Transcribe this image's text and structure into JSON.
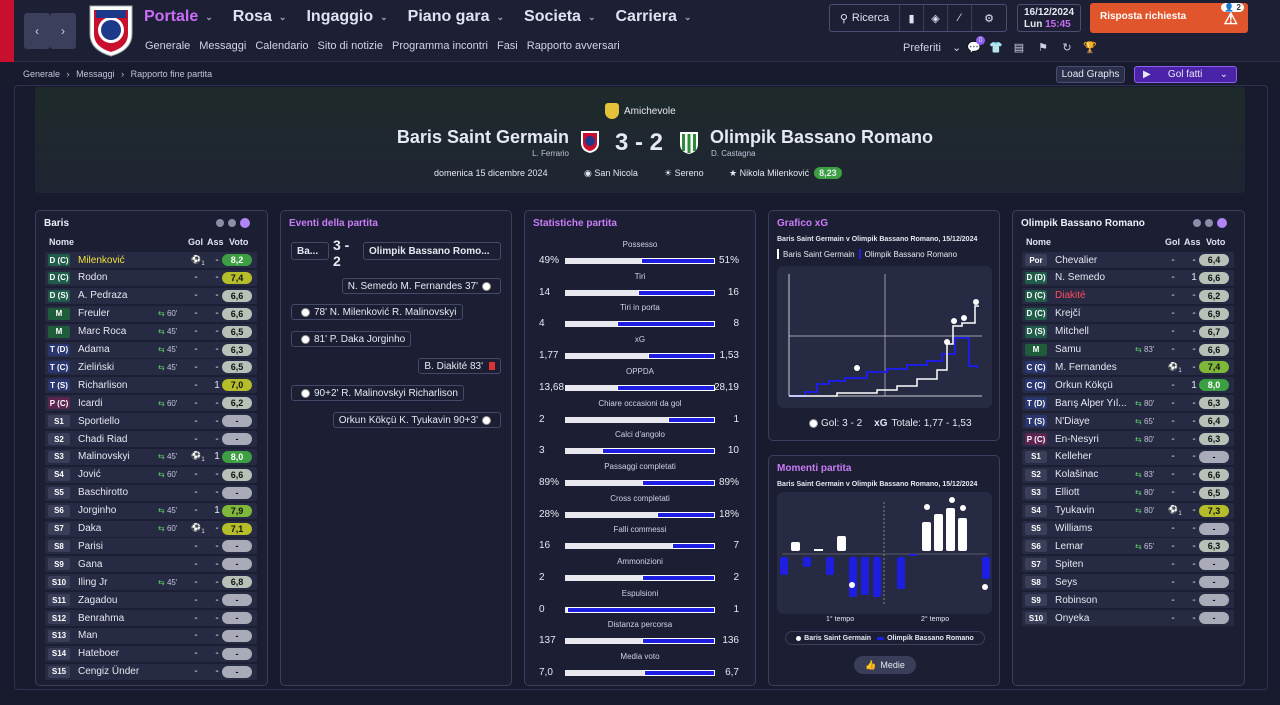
{
  "topbar": {
    "menu": [
      {
        "label": "Portale",
        "active": true
      },
      {
        "label": "Rosa"
      },
      {
        "label": "Ingaggio"
      },
      {
        "label": "Piano gara"
      },
      {
        "label": "Societa"
      },
      {
        "label": "Carriera"
      }
    ],
    "submenu": [
      "Generale",
      "Messaggi",
      "Calendario",
      "Sito di notizie",
      "Programma incontri",
      "Fasi",
      "Rapporto avversari"
    ],
    "search_label": "Ricerca",
    "date": "16/12/2024",
    "day": "Lun",
    "time": "15:45",
    "alert_label": "Risposta richiesta",
    "alert_count": "2",
    "prefs_label": "Preferiti",
    "notif_count": "0"
  },
  "breadcrumb": [
    "Generale",
    "Messaggi",
    "Rapporto fine partita"
  ],
  "buttons": {
    "load_graphs": "Load Graphs",
    "gol_fatti": "Gol fatti"
  },
  "match": {
    "competition": "Amichevole",
    "home": "Baris Saint Germain",
    "home_coach": "L. Ferrario",
    "away": "Olimpik Bassano Romano",
    "away_coach": "D. Castagna",
    "score": "3 - 2",
    "date": "domenica 15 dicembre 2024",
    "stadium": "San Nicola",
    "weather": "Sereno",
    "mvp": "Nikola Milenković",
    "mvp_rating": "8,23"
  },
  "home_panel": {
    "title": "Baris",
    "cols": {
      "name": "Nome",
      "gol": "Gol",
      "ass": "Ass",
      "voto": "Voto"
    },
    "players": [
      {
        "pos": "D (C)",
        "name": "Milenković",
        "gol": "1",
        "ass": "-",
        "voto": "8,2",
        "r": "gr",
        "hl": true
      },
      {
        "pos": "D (C)",
        "name": "Rodon",
        "gol": "-",
        "ass": "-",
        "voto": "7,4",
        "r": "y"
      },
      {
        "pos": "D (S)",
        "name": "A. Pedraza",
        "gol": "-",
        "ass": "-",
        "voto": "6,6",
        "r": "g"
      },
      {
        "pos": "M",
        "name": "Freuler",
        "sub": "60'",
        "gol": "-",
        "ass": "-",
        "voto": "6,6",
        "r": "g"
      },
      {
        "pos": "M",
        "name": "Marc Roca",
        "sub": "45'",
        "gol": "-",
        "ass": "-",
        "voto": "6,5",
        "r": "g"
      },
      {
        "pos": "T (D)",
        "name": "Adama",
        "sub": "45'",
        "gol": "-",
        "ass": "-",
        "voto": "6,3",
        "r": "g"
      },
      {
        "pos": "T (C)",
        "name": "Zieliński",
        "sub": "45'",
        "gol": "-",
        "ass": "-",
        "voto": "6,5",
        "r": "g"
      },
      {
        "pos": "T (S)",
        "name": "Richarlison",
        "gol": "-",
        "ass": "1",
        "voto": "7,0",
        "r": "y"
      },
      {
        "pos": "P (C)",
        "name": "Icardi",
        "sub": "60'",
        "gol": "-",
        "ass": "-",
        "voto": "6,2",
        "r": "g"
      },
      {
        "pos": "S1",
        "name": "Sportiello",
        "gol": "-",
        "ass": "-",
        "voto": "-",
        "r": "n"
      },
      {
        "pos": "S2",
        "name": "Chadi Riad",
        "gol": "-",
        "ass": "-",
        "voto": "-",
        "r": "n"
      },
      {
        "pos": "S3",
        "name": "Malinovskyi",
        "sub": "45'",
        "gol": "1",
        "ass": "1",
        "voto": "8,0",
        "r": "gr"
      },
      {
        "pos": "S4",
        "name": "Jović",
        "sub": "60'",
        "gol": "-",
        "ass": "-",
        "voto": "6,6",
        "r": "g"
      },
      {
        "pos": "S5",
        "name": "Baschirotto",
        "gol": "-",
        "ass": "-",
        "voto": "-",
        "r": "n"
      },
      {
        "pos": "S6",
        "name": "Jorginho",
        "sub": "45'",
        "gol": "-",
        "ass": "1",
        "voto": "7,9",
        "r": "gg"
      },
      {
        "pos": "S7",
        "name": "Daka",
        "sub": "60'",
        "gol": "1",
        "ass": "-",
        "voto": "7,1",
        "r": "y"
      },
      {
        "pos": "S8",
        "name": "Parisi",
        "gol": "-",
        "ass": "-",
        "voto": "-",
        "r": "n"
      },
      {
        "pos": "S9",
        "name": "Gana",
        "gol": "-",
        "ass": "-",
        "voto": "-",
        "r": "n"
      },
      {
        "pos": "S10",
        "name": "Iling Jr",
        "sub": "45'",
        "gol": "-",
        "ass": "-",
        "voto": "6,8",
        "r": "g"
      },
      {
        "pos": "S11",
        "name": "Zagadou",
        "gol": "-",
        "ass": "-",
        "voto": "-",
        "r": "n"
      },
      {
        "pos": "S12",
        "name": "Benrahma",
        "gol": "-",
        "ass": "-",
        "voto": "-",
        "r": "n"
      },
      {
        "pos": "S13",
        "name": "Man",
        "gol": "-",
        "ass": "-",
        "voto": "-",
        "r": "n"
      },
      {
        "pos": "S14",
        "name": "Hateboer",
        "gol": "-",
        "ass": "-",
        "voto": "-",
        "r": "n"
      },
      {
        "pos": "S15",
        "name": "Cengiz Ünder",
        "gol": "-",
        "ass": "-",
        "voto": "-",
        "r": "n"
      }
    ]
  },
  "events_panel": {
    "title": "Eventi della partita",
    "home_short": "Ba...",
    "score_a": "3 -",
    "score_b": "2",
    "away_short": "Olimpik Bassano Romo...",
    "events": [
      {
        "side": "away",
        "text": "N. Semedo  M. Fernandes 37'"
      },
      {
        "side": "home",
        "text": "78'  N. Milenković  R. Malinovskyi"
      },
      {
        "side": "home",
        "text": "81'  P. Daka  Jorginho"
      },
      {
        "side": "away",
        "text": "B. Diakité 83'",
        "card": true
      },
      {
        "side": "home",
        "text": "90+2'  R. Malinovskyi  Richarlison"
      },
      {
        "side": "away",
        "text": "Orkun Kökçü  K. Tyukavin 90+3'"
      }
    ]
  },
  "stats_panel": {
    "title": "Statistiche partita",
    "stats": [
      {
        "label": "Possesso",
        "h": "49%",
        "a": "51%",
        "hf": 0.49
      },
      {
        "label": "Tiri",
        "h": "14",
        "a": "16",
        "hf": 0.47
      },
      {
        "label": "Tiri in porta",
        "h": "4",
        "a": "8",
        "hf": 0.33
      },
      {
        "label": "xG",
        "h": "1,77",
        "a": "1,53",
        "hf": 0.54
      },
      {
        "label": "OPPDA",
        "h": "13,68",
        "a": "28,19",
        "hf": 0.33
      },
      {
        "label": "Chiare occasioni da gol",
        "h": "2",
        "a": "1",
        "hf": 0.67
      },
      {
        "label": "Calci d'angolo",
        "h": "3",
        "a": "10",
        "hf": 0.23
      },
      {
        "label": "Passaggi completati",
        "h": "89%",
        "a": "89%",
        "hf": 0.5
      },
      {
        "label": "Cross completati",
        "h": "28%",
        "a": "18%",
        "hf": 0.6
      },
      {
        "label": "Falli commessi",
        "h": "16",
        "a": "7",
        "hf": 0.7
      },
      {
        "label": "Ammonizioni",
        "h": "2",
        "a": "2",
        "hf": 0.5
      },
      {
        "label": "Espulsioni",
        "h": "0",
        "a": "1",
        "hf": 0.0
      },
      {
        "label": "Distanza percorsa",
        "h": "137",
        "a": "136",
        "hf": 0.5
      },
      {
        "label": "Media voto",
        "h": "7,0",
        "a": "6,7",
        "hf": 0.51
      }
    ]
  },
  "xg_panel": {
    "title": "Grafico xG",
    "subtitle": "Baris Saint Germain v Olimpik Bassano Romano, 15/12/2024",
    "legend_home": "Baris Saint Germain",
    "legend_away": "Olimpik Bassano Romano",
    "footer_gol": "Gol: 3 - 2",
    "footer_xg": "xG",
    "footer_tot": "Totale: 1,77 - 1,53"
  },
  "momenti_panel": {
    "title": "Momenti partita",
    "subtitle": "Baris Saint Germain v Olimpik Bassano Romano, 15/12/2024",
    "half1": "1° tempo",
    "half2": "2° tempo",
    "legend_home": "Baris Saint Germain",
    "legend_away": "Olimpik Bassano Romano",
    "button": "Medie"
  },
  "away_panel": {
    "title": "Olimpik Bassano Romano",
    "cols": {
      "name": "Nome",
      "gol": "Gol",
      "ass": "Ass",
      "voto": "Voto"
    },
    "players": [
      {
        "pos": "Por",
        "name": "Chevalier",
        "gol": "-",
        "ass": "-",
        "voto": "6,4",
        "r": "g"
      },
      {
        "pos": "D (D)",
        "name": "N. Semedo",
        "gol": "-",
        "ass": "1",
        "voto": "6,6",
        "r": "g"
      },
      {
        "pos": "D (C)",
        "name": "Diakité",
        "gol": "-",
        "ass": "-",
        "voto": "6,2",
        "r": "g",
        "red": true
      },
      {
        "pos": "D (C)",
        "name": "Krejčí",
        "gol": "-",
        "ass": "-",
        "voto": "6,9",
        "r": "g"
      },
      {
        "pos": "D (S)",
        "name": "Mitchell",
        "gol": "-",
        "ass": "-",
        "voto": "6,7",
        "r": "g"
      },
      {
        "pos": "M",
        "name": "Samu",
        "sub": "83'",
        "gol": "-",
        "ass": "-",
        "voto": "6,6",
        "r": "g"
      },
      {
        "pos": "C (C)",
        "name": "M. Fernandes",
        "gol": "1",
        "ass": "-",
        "voto": "7,4",
        "r": "gg"
      },
      {
        "pos": "C (C)",
        "name": "Orkun Kökçü",
        "gol": "-",
        "ass": "1",
        "voto": "8,0",
        "r": "gr"
      },
      {
        "pos": "T (D)",
        "name": "Barış Alper Yıl...",
        "sub": "80'",
        "gol": "-",
        "ass": "-",
        "voto": "6,3",
        "r": "g"
      },
      {
        "pos": "T (S)",
        "name": "N'Diaye",
        "sub": "65'",
        "gol": "-",
        "ass": "-",
        "voto": "6,4",
        "r": "g"
      },
      {
        "pos": "P (C)",
        "name": "En-Nesyri",
        "sub": "80'",
        "gol": "-",
        "ass": "-",
        "voto": "6,3",
        "r": "g"
      },
      {
        "pos": "S1",
        "name": "Kelleher",
        "gol": "-",
        "ass": "-",
        "voto": "-",
        "r": "n"
      },
      {
        "pos": "S2",
        "name": "Kolašinac",
        "sub": "83'",
        "gol": "-",
        "ass": "-",
        "voto": "6,6",
        "r": "g"
      },
      {
        "pos": "S3",
        "name": "Elliott",
        "sub": "80'",
        "gol": "-",
        "ass": "-",
        "voto": "6,5",
        "r": "g"
      },
      {
        "pos": "S4",
        "name": "Tyukavin",
        "sub": "80'",
        "gol": "1",
        "ass": "-",
        "voto": "7,3",
        "r": "y"
      },
      {
        "pos": "S5",
        "name": "Williams",
        "gol": "-",
        "ass": "-",
        "voto": "-",
        "r": "n"
      },
      {
        "pos": "S6",
        "name": "Lemar",
        "sub": "65'",
        "gol": "-",
        "ass": "-",
        "voto": "6,3",
        "r": "g"
      },
      {
        "pos": "S7",
        "name": "Spiten",
        "gol": "-",
        "ass": "-",
        "voto": "-",
        "r": "n"
      },
      {
        "pos": "S8",
        "name": "Seys",
        "gol": "-",
        "ass": "-",
        "voto": "-",
        "r": "n"
      },
      {
        "pos": "S9",
        "name": "Robinson",
        "gol": "-",
        "ass": "-",
        "voto": "-",
        "r": "n"
      },
      {
        "pos": "S10",
        "name": "Onyeka",
        "gol": "-",
        "ass": "-",
        "voto": "-",
        "r": "n"
      }
    ]
  },
  "colors": {
    "accent": "#c96cf5",
    "home_line": "#ffffff",
    "away_line": "#1e1ee0",
    "alert": "#e0552b"
  }
}
